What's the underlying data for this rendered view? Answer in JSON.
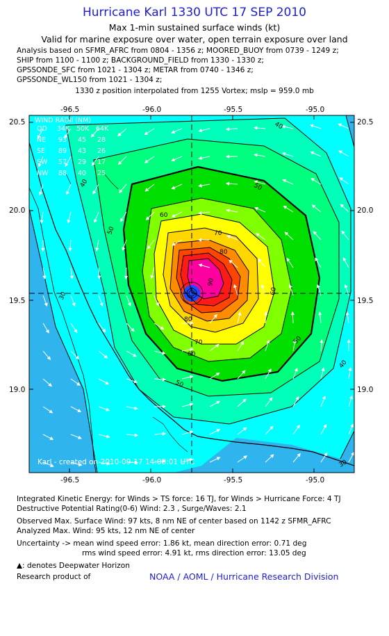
{
  "header": {
    "title": "Hurricane Karl 1330 UTC 17 SEP 2010",
    "subtitle": "Max 1-min sustained surface winds (kt)",
    "valid": "Valid for marine exposure over water, open terrain exposure over land"
  },
  "analysis_lines": [
    "Analysis based on SFMR_AFRC from 0804 - 1356 z; MOORED_BUOY from 0739 - 1249 z;",
    "SHIP from 1100 - 1100 z; BACKGROUND_FIELD from 1330 - 1330 z;",
    "GPSSONDE_SFC from 1021 - 1304 z; METAR from 0740 - 1346 z;",
    "GPSSONDE_WL150 from 1021 - 1304 z;"
  ],
  "position_line": "1330 z position interpolated from 1255 Vortex; mslp = 959.0 mb",
  "map": {
    "lon_ticks": [
      "-96.5",
      "-96.0",
      "-95.5",
      "-95.0"
    ],
    "lat_ticks": [
      "20.5",
      "20.0",
      "19.5",
      "19.0"
    ],
    "lon_range": [
      -96.75,
      -94.75
    ],
    "lat_range": [
      18.5,
      20.55
    ],
    "center": {
      "lon": -95.75,
      "lat": 19.53
    },
    "wind_radii": {
      "title": "WIND RADII (NM)",
      "header": [
        "QD",
        "34K",
        "50K",
        "64K"
      ],
      "rows": [
        [
          "NE",
          "93",
          "45",
          "28"
        ],
        [
          "SE",
          "89",
          "43",
          "26"
        ],
        [
          "SW",
          "57",
          "29",
          "17"
        ],
        [
          "NW",
          "88",
          "40",
          "25"
        ]
      ]
    },
    "contour_labels": [
      "40",
      "50",
      "60",
      "70",
      "80",
      "90",
      "30"
    ],
    "watermark": "Karl - created on 2010-09-17 14:08:01 UTC",
    "colors": {
      "ocean": "#2fb4ee",
      "cyan": "#00ffff",
      "aqua_green": "#00ffbb",
      "green_light": "#00ff7f",
      "green": "#00e000",
      "yellow_green": "#7fff00",
      "yellow": "#ffff00",
      "gold": "#ffd700",
      "orange": "#ff8c00",
      "orange_red": "#ff4500",
      "red": "#ff1a1a",
      "magenta": "#ff1493",
      "pink": "#ff00a0",
      "core": "#1a4dff"
    }
  },
  "footer": {
    "ike": "Integrated Kinetic Energy:  for Winds > TS force: 16 TJ,  for Winds > Hurricane Force: 4 TJ",
    "dpr": "Destructive Potential Rating(0-6)   Wind: 2.3 , Surge/Waves: 2.1",
    "obs": "Observed Max. Surface Wind: 97 kts, 8 nm NE of center based on 1142 z SFMR_AFRC",
    "analyzed": "Analyzed Max. Wind: 95 kts, 12 nm NE of center",
    "unc1": "Uncertainty -> mean wind speed error: 1.86 kt,   mean direction error: 0.71 deg",
    "unc2": "rms wind speed error: 4.91 kt,   rms direction error: 13.05 deg",
    "deepwater": ": denotes Deepwater Horizon",
    "research": "Research product of",
    "credit": "NOAA / AOML / Hurricane Research Division"
  }
}
